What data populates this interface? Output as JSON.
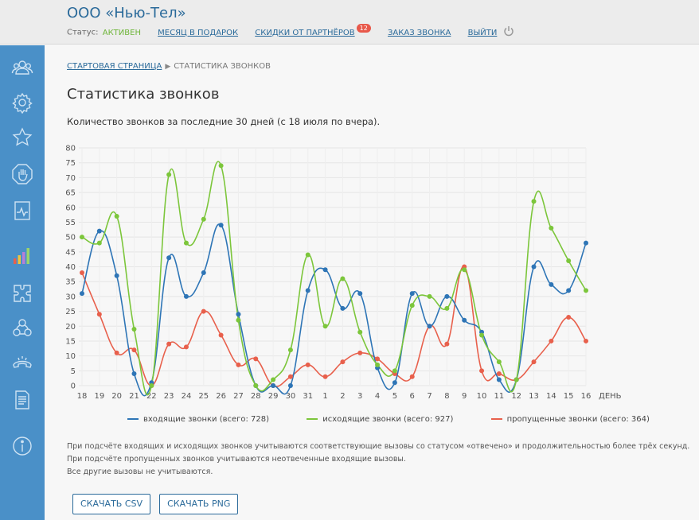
{
  "header": {
    "company": "ООО «Нью-Тел»",
    "status_label": "Статус:",
    "status_value": "АКТИВЕН",
    "nav": [
      "МЕСЯЦ В ПОДАРОК",
      "СКИДКИ ОТ ПАРТНЁРОВ",
      "ЗАКАЗ ЗВОНКА",
      "ВЫЙТИ"
    ],
    "partners_badge": "12"
  },
  "sidebar": {
    "icons": [
      "users-icon",
      "gear-icon",
      "star-icon",
      "hand-stop-icon",
      "pulse-icon",
      "bar-chart-icon",
      "puzzle-icon",
      "network-icon",
      "phone-icon",
      "document-icon",
      "info-icon"
    ],
    "active": "bar-chart-icon"
  },
  "breadcrumb": {
    "home": "СТАРТОВАЯ СТРАНИЦА",
    "current": "СТАТИСТИКА ЗВОНКОВ"
  },
  "page": {
    "title": "Статистика звонков",
    "subtitle": "Количество звонков за последние 30 дней (с 18 июля по вчера)."
  },
  "chart_data": {
    "type": "line",
    "categories": [
      "18",
      "19",
      "20",
      "21",
      "22",
      "23",
      "24",
      "25",
      "26",
      "27",
      "28",
      "29",
      "30",
      "31",
      "1",
      "2",
      "3",
      "4",
      "5",
      "6",
      "7",
      "8",
      "9",
      "10",
      "11",
      "12",
      "13",
      "14",
      "15",
      "16"
    ],
    "xlabel": "ДЕНЬ",
    "ylim": [
      0,
      80
    ],
    "yticks": [
      0,
      5,
      10,
      15,
      20,
      25,
      30,
      35,
      40,
      45,
      50,
      55,
      60,
      65,
      70,
      75,
      80
    ],
    "grid": true,
    "legend_position": "bottom",
    "series": [
      {
        "name": "входящие звонки (всего: 728)",
        "color": "#2e75b6",
        "values": [
          31,
          52,
          37,
          4,
          1,
          43,
          30,
          38,
          54,
          24,
          0,
          0,
          0,
          32,
          39,
          26,
          31,
          6,
          1,
          31,
          20,
          30,
          22,
          18,
          2,
          2,
          40,
          34,
          32,
          48
        ]
      },
      {
        "name": "исходящие звонки (всего: 927)",
        "color": "#7cc63b",
        "values": [
          50,
          48,
          57,
          19,
          0,
          71,
          48,
          56,
          74,
          22,
          0,
          2,
          12,
          44,
          20,
          36,
          18,
          7,
          5,
          27,
          30,
          26,
          39,
          17,
          8,
          2,
          62,
          53,
          42,
          32
        ]
      },
      {
        "name": "пропущенные звонки (всего: 364)",
        "color": "#e8604c",
        "values": [
          38,
          24,
          11,
          12,
          0,
          14,
          13,
          25,
          17,
          7,
          9,
          0,
          3,
          7,
          3,
          8,
          11,
          9,
          4,
          3,
          20,
          14,
          40,
          5,
          4,
          2,
          8,
          15,
          23,
          15
        ]
      }
    ]
  },
  "notes": [
    "При подсчёте входящих и исходящих звонков учитываются соответствующие вызовы со статусом «отвечено» и продолжительностью более трёх секунд.",
    "При подсчёте пропущенных звонков учитываются неотвеченные входящие вызовы.",
    "Все другие вызовы не учитываются."
  ],
  "buttons": {
    "csv": "СКАЧАТЬ CSV",
    "png": "СКАЧАТЬ PNG"
  }
}
